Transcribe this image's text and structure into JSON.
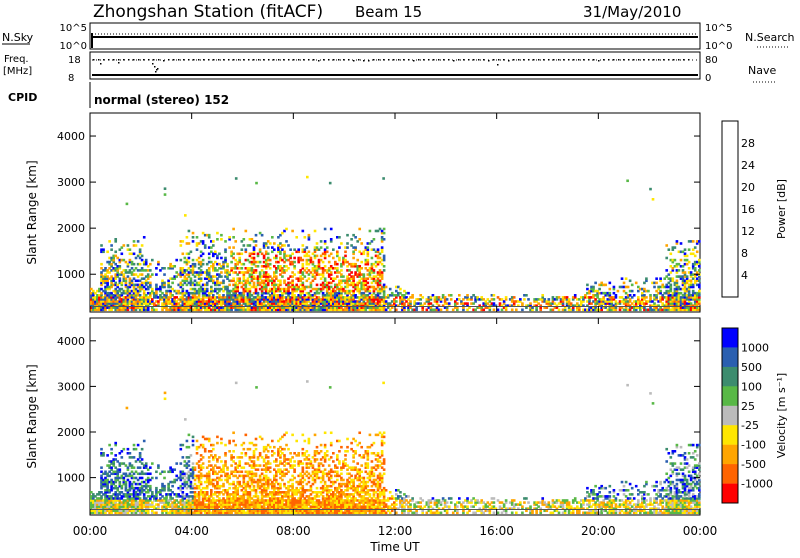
{
  "header": {
    "station_title": "Zhongshan Station (fitACF)",
    "beam": "Beam 15",
    "date": "31/May/2010"
  },
  "top_panels": {
    "nsky_label": "N.Sky",
    "nsky_ticks": [
      "10^5",
      "10^0"
    ],
    "nsearch_label": "N.Search",
    "nsearch_ticks": [
      "10^5",
      "10^0"
    ],
    "freq_label": "Freq.",
    "freq_unit": "[MHz]",
    "freq_ticks": [
      "18",
      "8"
    ],
    "nave_label": "Nave",
    "nave_ticks": [
      "80",
      "0"
    ],
    "cpid_label": "CPID",
    "cpid_text": "normal (stereo) 152"
  },
  "colors": {
    "power": [
      "#0000ff",
      "#2a5fb0",
      "#3c8c6e",
      "#58b846",
      "#ffe600",
      "#ffa500",
      "#ff6400",
      "#ff0000"
    ],
    "velocity": [
      "#0000ff",
      "#2a5fb0",
      "#3c8c6e",
      "#58b846",
      "#bbbbbb",
      "#ffe600",
      "#ffa500",
      "#ff6400",
      "#ff0000"
    ]
  },
  "chart_data": [
    {
      "type": "heatmap",
      "ylabel": "Slant Range [km]",
      "xlabel": "",
      "ylim": [
        180,
        4500
      ],
      "xlim": [
        0,
        24
      ],
      "ytick_labels": [
        "1000",
        "2000",
        "3000",
        "4000"
      ],
      "yticks": [
        1000,
        2000,
        3000,
        4000
      ],
      "colorbar_label": "Power [dB]",
      "colorbar_ticks": [
        "4",
        "8",
        "12",
        "16",
        "20",
        "24",
        "28"
      ],
      "colorbar_values": [
        4,
        8,
        12,
        16,
        20,
        24,
        28
      ],
      "colorbar_range": [
        0,
        32
      ]
    },
    {
      "type": "heatmap",
      "ylabel": "Slant Range [km]",
      "xlabel": "Time UT",
      "ylim": [
        180,
        4500
      ],
      "xlim": [
        0,
        24
      ],
      "ytick_labels": [
        "1000",
        "2000",
        "3000",
        "4000"
      ],
      "yticks": [
        1000,
        2000,
        3000,
        4000
      ],
      "xtick_labels": [
        "00:00",
        "04:00",
        "08:00",
        "12:00",
        "16:00",
        "20:00",
        "00:00"
      ],
      "xticks": [
        0,
        4,
        8,
        12,
        16,
        20,
        24
      ],
      "colorbar_label": "Velocity [m s⁻¹]",
      "colorbar_ticks": [
        "1000",
        "500",
        "100",
        "25",
        "-25",
        "-100",
        "-500",
        "-1000"
      ]
    }
  ]
}
